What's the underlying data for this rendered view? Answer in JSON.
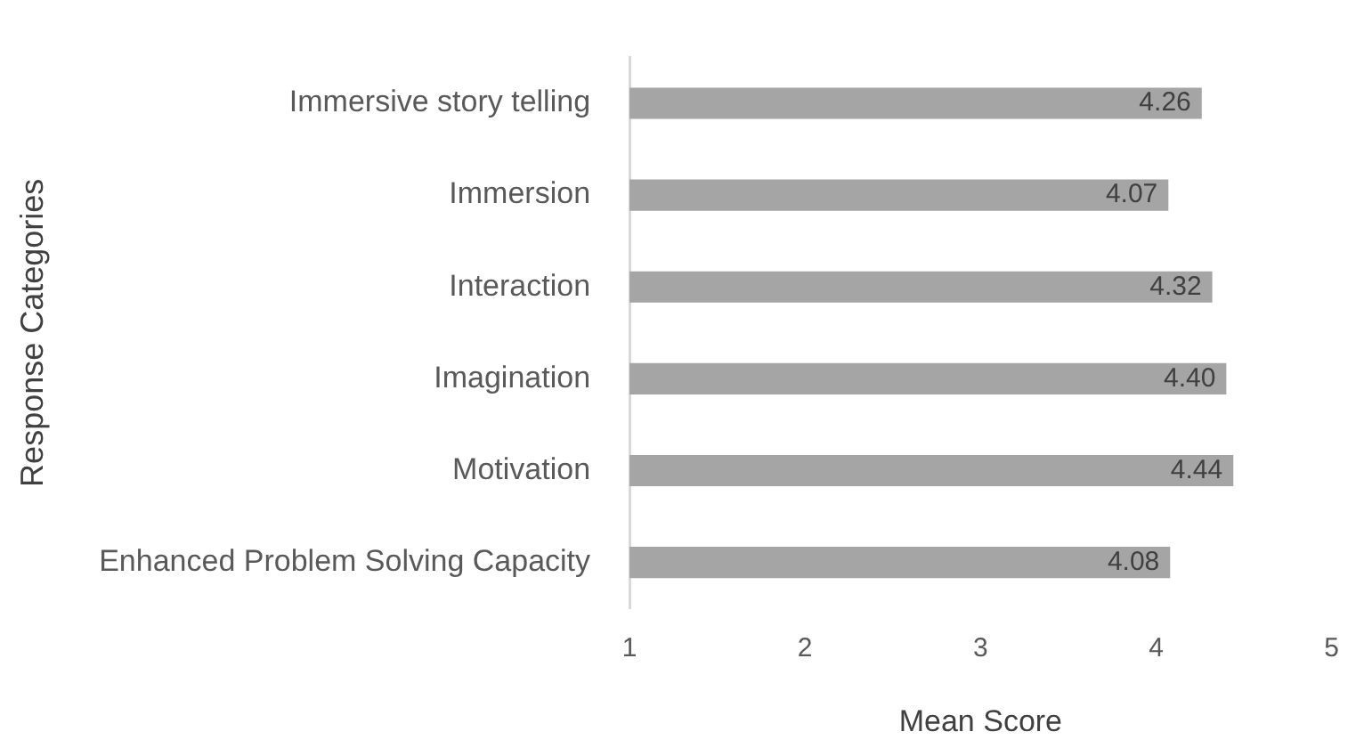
{
  "chart_data": {
    "type": "bar",
    "orientation": "horizontal",
    "xlabel": "Mean Score",
    "ylabel": "Response Categories",
    "categories": [
      "Immersive story telling",
      "Immersion",
      "Interaction",
      "Imagination",
      "Motivation",
      "Enhanced Problem Solving Capacity"
    ],
    "values": [
      4.26,
      4.07,
      4.32,
      4.4,
      4.44,
      4.08
    ],
    "value_labels": [
      "4.26",
      "4.07",
      "4.32",
      "4.40",
      "4.44",
      "4.08"
    ],
    "color": "#a5a5a5",
    "xlim": [
      1,
      5
    ],
    "xticks": [
      1,
      2,
      3,
      4,
      5
    ],
    "grid": false,
    "legend": false
  }
}
